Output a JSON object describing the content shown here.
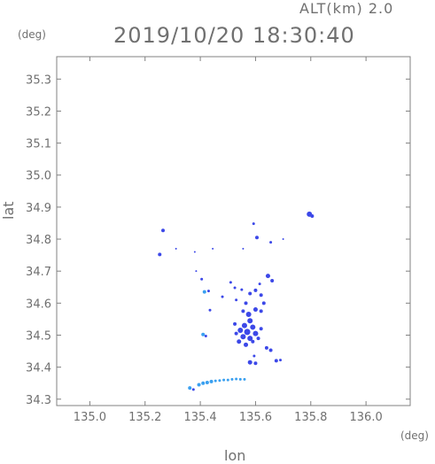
{
  "header": {
    "alt_label": "ALT(km) 2.0",
    "timestamp": "2019/10/20 18:30:40"
  },
  "axes": {
    "y_unit": "(deg)",
    "x_unit": "(deg)",
    "y_title": "lat",
    "x_title": "lon"
  },
  "chart_data": {
    "type": "scatter",
    "title": "2019/10/20 18:30:40",
    "xlabel": "lon",
    "ylabel": "lat",
    "xlim": [
      134.88,
      136.16
    ],
    "ylim": [
      34.28,
      35.37
    ],
    "x_ticks": [
      135.0,
      135.2,
      135.4,
      135.6,
      135.8,
      136.0
    ],
    "x_tick_labels": [
      "135.0",
      "135.2",
      "135.4",
      "135.6",
      "135.8",
      "136.0"
    ],
    "y_ticks": [
      34.3,
      34.4,
      34.5,
      34.6,
      34.7,
      34.8,
      34.9,
      35.0,
      35.1,
      35.2,
      35.3
    ],
    "y_tick_labels": [
      "34.3",
      "34.4",
      "34.5",
      "34.6",
      "34.7",
      "34.8",
      "34.9",
      "35.0",
      "35.1",
      "35.2",
      "35.3"
    ],
    "colors": {
      "echo_main": "#3c48e8",
      "echo_light": "#3aa0f0",
      "axis": "#808080"
    },
    "points": [
      {
        "lon": 135.795,
        "lat": 34.878,
        "size": 3
      },
      {
        "lon": 135.805,
        "lat": 34.872,
        "size": 2
      },
      {
        "lon": 135.265,
        "lat": 34.827,
        "size": 2
      },
      {
        "lon": 135.253,
        "lat": 34.752,
        "size": 2
      },
      {
        "lon": 135.312,
        "lat": 34.77,
        "size": 1
      },
      {
        "lon": 135.38,
        "lat": 34.76,
        "size": 1
      },
      {
        "lon": 135.445,
        "lat": 34.77,
        "size": 1
      },
      {
        "lon": 135.593,
        "lat": 34.848,
        "size": 1.5
      },
      {
        "lon": 135.605,
        "lat": 34.805,
        "size": 2
      },
      {
        "lon": 135.655,
        "lat": 34.79,
        "size": 1.5
      },
      {
        "lon": 135.7,
        "lat": 34.8,
        "size": 1
      },
      {
        "lon": 135.555,
        "lat": 34.77,
        "size": 1
      },
      {
        "lon": 135.385,
        "lat": 34.7,
        "size": 1
      },
      {
        "lon": 135.405,
        "lat": 34.675,
        "size": 1.5
      },
      {
        "lon": 135.415,
        "lat": 34.635,
        "size": 2,
        "tone": "light"
      },
      {
        "lon": 135.43,
        "lat": 34.638,
        "size": 1.5
      },
      {
        "lon": 135.435,
        "lat": 34.578,
        "size": 1.5
      },
      {
        "lon": 135.48,
        "lat": 34.62,
        "size": 1.5
      },
      {
        "lon": 135.51,
        "lat": 34.665,
        "size": 1.5
      },
      {
        "lon": 135.525,
        "lat": 34.648,
        "size": 1.5
      },
      {
        "lon": 135.53,
        "lat": 34.61,
        "size": 1.5
      },
      {
        "lon": 135.55,
        "lat": 34.642,
        "size": 1.5
      },
      {
        "lon": 135.565,
        "lat": 34.6,
        "size": 2
      },
      {
        "lon": 135.58,
        "lat": 34.63,
        "size": 2
      },
      {
        "lon": 135.6,
        "lat": 34.64,
        "size": 2
      },
      {
        "lon": 135.62,
        "lat": 34.625,
        "size": 2
      },
      {
        "lon": 135.615,
        "lat": 34.66,
        "size": 1.5
      },
      {
        "lon": 135.645,
        "lat": 34.685,
        "size": 2.5
      },
      {
        "lon": 135.66,
        "lat": 34.67,
        "size": 2
      },
      {
        "lon": 135.63,
        "lat": 34.6,
        "size": 2
      },
      {
        "lon": 135.62,
        "lat": 34.575,
        "size": 2
      },
      {
        "lon": 135.6,
        "lat": 34.58,
        "size": 2.5
      },
      {
        "lon": 135.575,
        "lat": 34.565,
        "size": 3
      },
      {
        "lon": 135.555,
        "lat": 34.575,
        "size": 2
      },
      {
        "lon": 135.58,
        "lat": 34.545,
        "size": 3
      },
      {
        "lon": 135.56,
        "lat": 34.53,
        "size": 3
      },
      {
        "lon": 135.545,
        "lat": 34.515,
        "size": 3
      },
      {
        "lon": 135.57,
        "lat": 34.51,
        "size": 3.5
      },
      {
        "lon": 135.59,
        "lat": 34.525,
        "size": 3
      },
      {
        "lon": 135.6,
        "lat": 34.505,
        "size": 3
      },
      {
        "lon": 135.58,
        "lat": 34.49,
        "size": 3
      },
      {
        "lon": 135.555,
        "lat": 34.495,
        "size": 3
      },
      {
        "lon": 135.54,
        "lat": 34.48,
        "size": 2.5
      },
      {
        "lon": 135.565,
        "lat": 34.47,
        "size": 2.5
      },
      {
        "lon": 135.59,
        "lat": 34.48,
        "size": 2
      },
      {
        "lon": 135.61,
        "lat": 34.49,
        "size": 2
      },
      {
        "lon": 135.62,
        "lat": 34.52,
        "size": 2
      },
      {
        "lon": 135.525,
        "lat": 34.535,
        "size": 2
      },
      {
        "lon": 135.53,
        "lat": 34.505,
        "size": 2
      },
      {
        "lon": 135.41,
        "lat": 34.502,
        "size": 2,
        "tone": "light"
      },
      {
        "lon": 135.42,
        "lat": 34.497,
        "size": 1.5
      },
      {
        "lon": 135.64,
        "lat": 34.46,
        "size": 2
      },
      {
        "lon": 135.655,
        "lat": 34.453,
        "size": 2
      },
      {
        "lon": 135.595,
        "lat": 34.435,
        "size": 1.5
      },
      {
        "lon": 135.58,
        "lat": 34.415,
        "size": 2.5
      },
      {
        "lon": 135.6,
        "lat": 34.412,
        "size": 2
      },
      {
        "lon": 135.675,
        "lat": 34.42,
        "size": 2
      },
      {
        "lon": 135.69,
        "lat": 34.422,
        "size": 1.5
      },
      {
        "lon": 135.362,
        "lat": 34.335,
        "size": 2,
        "tone": "light"
      },
      {
        "lon": 135.375,
        "lat": 34.33,
        "size": 1.5
      },
      {
        "lon": 135.395,
        "lat": 34.345,
        "size": 2,
        "tone": "light"
      },
      {
        "lon": 135.41,
        "lat": 34.35,
        "size": 2,
        "tone": "light"
      },
      {
        "lon": 135.425,
        "lat": 34.352,
        "size": 2,
        "tone": "light"
      },
      {
        "lon": 135.44,
        "lat": 34.355,
        "size": 2,
        "tone": "light"
      },
      {
        "lon": 135.455,
        "lat": 34.357,
        "size": 1.5,
        "tone": "light"
      },
      {
        "lon": 135.47,
        "lat": 34.358,
        "size": 1.5,
        "tone": "light"
      },
      {
        "lon": 135.485,
        "lat": 34.36,
        "size": 1.5,
        "tone": "light"
      },
      {
        "lon": 135.5,
        "lat": 34.36,
        "size": 1.5,
        "tone": "light"
      },
      {
        "lon": 135.515,
        "lat": 34.362,
        "size": 1.5,
        "tone": "light"
      },
      {
        "lon": 135.53,
        "lat": 34.363,
        "size": 1.5,
        "tone": "light"
      },
      {
        "lon": 135.545,
        "lat": 34.362,
        "size": 1.5,
        "tone": "light"
      },
      {
        "lon": 135.56,
        "lat": 34.362,
        "size": 1.5,
        "tone": "light"
      }
    ]
  }
}
